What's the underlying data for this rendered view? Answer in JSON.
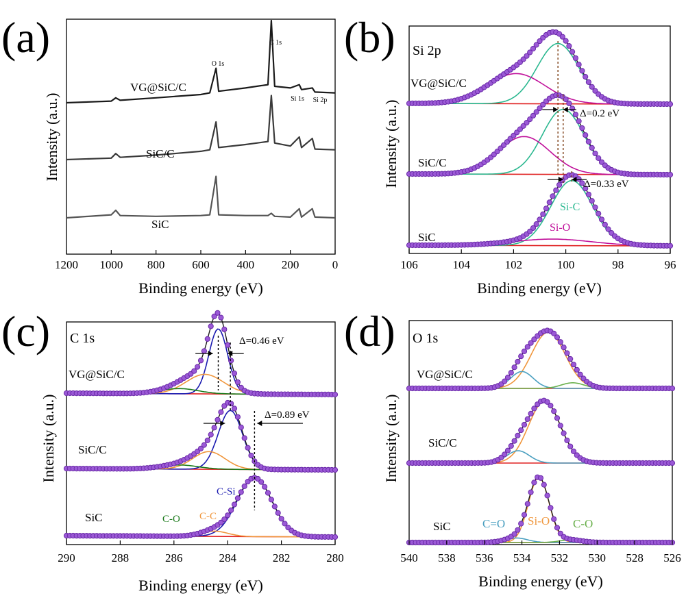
{
  "figure": {
    "panels": [
      {
        "id": "a",
        "letter": "(a)",
        "xlabel": "Binding energy (eV)",
        "ylabel": "Intensity (a.u.)",
        "xlim": [
          1200,
          0
        ],
        "xticks": [
          1200,
          1000,
          800,
          600,
          400,
          200,
          0
        ],
        "peak_labels": [
          "O 1s",
          "C 1s",
          "Si 1s",
          "Si 2p"
        ],
        "curve_labels": [
          "VG@SiC/C",
          "SiC/C",
          "SiC"
        ]
      },
      {
        "id": "b",
        "letter": "(b)",
        "inset_title": "Si 2p",
        "xlabel": "Binding energy (eV)",
        "ylabel": "Intensity (a.u.)",
        "xlim": [
          106,
          96
        ],
        "xticks": [
          106,
          104,
          102,
          100,
          98,
          96
        ],
        "curve_labels": [
          "VG@SiC/C",
          "SiC/C",
          "SiC"
        ],
        "component_labels": [
          "Si-C",
          "Si-O"
        ],
        "shift_labels": [
          "Δ=0.2 eV",
          "Δ=0.33 eV"
        ]
      },
      {
        "id": "c",
        "letter": "(c)",
        "inset_title": "C 1s",
        "xlabel": "Binding energy (eV)",
        "ylabel": "Intensity (a.u.)",
        "xlim": [
          290,
          280
        ],
        "xticks": [
          290,
          288,
          286,
          284,
          282,
          280
        ],
        "curve_labels": [
          "VG@SiC/C",
          "SiC/C",
          "SiC"
        ],
        "component_labels": [
          "C-Si",
          "C-C",
          "C-O"
        ],
        "shift_labels": [
          "Δ=0.46 eV",
          "Δ=0.89 eV"
        ]
      },
      {
        "id": "d",
        "letter": "(d)",
        "inset_title": "O 1s",
        "xlabel": "Binding energy (eV)",
        "ylabel": "Intensity (a.u.)",
        "xlim": [
          540,
          526
        ],
        "xticks": [
          540,
          538,
          536,
          534,
          532,
          530,
          528,
          526
        ],
        "curve_labels": [
          "VG@SiC/C",
          "SiC/C",
          "SiC"
        ],
        "component_labels": [
          "C=O",
          "Si-O",
          "C-O"
        ]
      }
    ]
  },
  "chart_data": [
    {
      "type": "line",
      "panel": "a",
      "xlabel": "Binding energy (eV)",
      "ylabel": "Intensity (a.u.)",
      "xlim": [
        1200,
        0
      ],
      "series": [
        {
          "name": "VG@SiC/C",
          "x": [
            1200,
            1000,
            980,
            960,
            800,
            600,
            560,
            532,
            520,
            400,
            300,
            285,
            270,
            200,
            160,
            150,
            102,
            90,
            0
          ],
          "y": [
            0.0,
            0.02,
            0.06,
            0.03,
            0.06,
            0.1,
            0.12,
            0.42,
            0.14,
            0.18,
            0.22,
            1.0,
            0.2,
            0.18,
            0.22,
            0.16,
            0.18,
            0.13,
            0.12
          ]
        },
        {
          "name": "SiC/C",
          "x": [
            1200,
            1000,
            980,
            960,
            800,
            600,
            560,
            532,
            520,
            400,
            300,
            285,
            270,
            200,
            160,
            150,
            102,
            90,
            0
          ],
          "y": [
            0.0,
            0.02,
            0.08,
            0.03,
            0.06,
            0.11,
            0.13,
            0.5,
            0.16,
            0.2,
            0.24,
            0.85,
            0.22,
            0.18,
            0.3,
            0.16,
            0.28,
            0.14,
            0.13
          ]
        },
        {
          "name": "SiC",
          "x": [
            1200,
            1000,
            980,
            960,
            800,
            600,
            560,
            532,
            520,
            400,
            300,
            285,
            270,
            200,
            160,
            150,
            102,
            90,
            0
          ],
          "y": [
            0.0,
            0.04,
            0.1,
            0.03,
            0.02,
            0.03,
            0.04,
            0.55,
            0.04,
            0.03,
            0.03,
            0.06,
            0.02,
            0.01,
            0.12,
            0.01,
            0.12,
            0.01,
            0.0
          ]
        }
      ]
    },
    {
      "type": "line",
      "panel": "b",
      "xlabel": "Binding energy (eV)",
      "ylabel": "Intensity (a.u.)",
      "xlim": [
        106,
        96
      ],
      "series": [
        {
          "name": "VG@SiC/C",
          "peaks": [
            {
              "label": "Si-C",
              "center": 100.3,
              "height": 1.0,
              "width": 0.8
            },
            {
              "label": "Si-O",
              "center": 101.9,
              "height": 0.5,
              "width": 1.1
            }
          ]
        },
        {
          "name": "SiC/C",
          "peaks": [
            {
              "label": "Si-C",
              "center": 100.1,
              "height": 1.0,
              "width": 0.8
            },
            {
              "label": "Si-O",
              "center": 101.6,
              "height": 0.58,
              "width": 1.0
            }
          ]
        },
        {
          "name": "SiC",
          "peaks": [
            {
              "label": "Si-C",
              "center": 99.77,
              "height": 1.0,
              "width": 0.8
            },
            {
              "label": "Si-O",
              "center": 100.5,
              "height": 0.1,
              "width": 1.5
            }
          ]
        }
      ]
    },
    {
      "type": "line",
      "panel": "c",
      "xlabel": "Binding energy (eV)",
      "ylabel": "Intensity (a.u.)",
      "xlim": [
        290,
        280
      ],
      "series": [
        {
          "name": "VG@SiC/C",
          "peaks": [
            {
              "label": "C-Si",
              "center": 284.35,
              "height": 1.0,
              "width": 0.35
            },
            {
              "label": "C-C",
              "center": 284.85,
              "height": 0.3,
              "width": 0.7
            },
            {
              "label": "C-O",
              "center": 285.8,
              "height": 0.08,
              "width": 0.7
            }
          ]
        },
        {
          "name": "SiC/C",
          "peaks": [
            {
              "label": "C-Si",
              "center": 283.9,
              "height": 1.0,
              "width": 0.45
            },
            {
              "label": "C-C",
              "center": 284.7,
              "height": 0.3,
              "width": 0.6
            },
            {
              "label": "C-O",
              "center": 285.8,
              "height": 0.07,
              "width": 0.7
            }
          ]
        },
        {
          "name": "SiC",
          "peaks": [
            {
              "label": "C-Si",
              "center": 283.0,
              "height": 1.0,
              "width": 0.65
            },
            {
              "label": "C-C",
              "center": 284.5,
              "height": 0.09,
              "width": 0.5
            }
          ]
        }
      ]
    },
    {
      "type": "line",
      "panel": "d",
      "xlabel": "Binding energy (eV)",
      "ylabel": "Intensity (a.u.)",
      "xlim": [
        540,
        526
      ],
      "series": [
        {
          "name": "VG@SiC/C",
          "peaks": [
            {
              "label": "Si-O",
              "center": 532.6,
              "height": 1.0,
              "width": 0.9
            },
            {
              "label": "C=O",
              "center": 534.0,
              "height": 0.3,
              "width": 0.6
            },
            {
              "label": "C-O",
              "center": 531.3,
              "height": 0.1,
              "width": 0.6
            }
          ]
        },
        {
          "name": "SiC/C",
          "peaks": [
            {
              "label": "Si-O",
              "center": 532.8,
              "height": 1.0,
              "width": 0.85
            },
            {
              "label": "C=O",
              "center": 534.2,
              "height": 0.2,
              "width": 0.6
            }
          ]
        },
        {
          "name": "SiC",
          "peaks": [
            {
              "label": "Si-O",
              "center": 533.1,
              "height": 1.0,
              "width": 0.55
            },
            {
              "label": "C=O",
              "center": 534.3,
              "height": 0.07,
              "width": 0.6
            },
            {
              "label": "C-O",
              "center": 531.4,
              "height": 0.04,
              "width": 0.6
            }
          ]
        }
      ]
    }
  ]
}
